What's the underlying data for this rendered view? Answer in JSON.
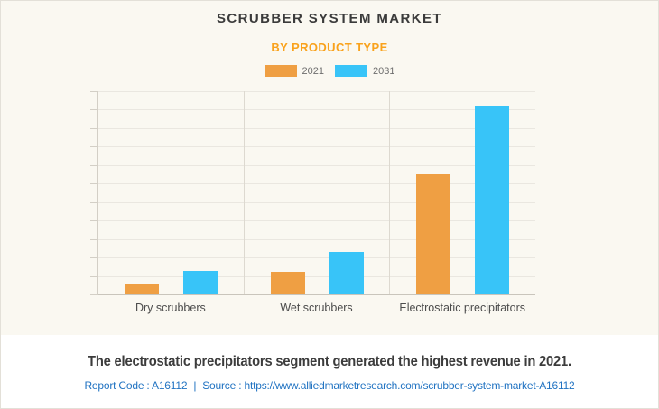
{
  "header": {
    "title": "SCRUBBER SYSTEM MARKET",
    "subtitle": "BY PRODUCT TYPE"
  },
  "colors": {
    "accent_orange": "#f9a21c",
    "bar_2021_orange": "#ef9f43",
    "bar_2031_blue": "#38c4f8",
    "link_blue": "#2173c2",
    "card_background": "#faf8f1"
  },
  "chart_data": {
    "type": "bar",
    "title": "SCRUBBER SYSTEM MARKET",
    "subtitle": "BY PRODUCT TYPE",
    "categories": [
      "Dry scrubbers",
      "Wet scrubbers",
      "Electrostatic precipitators"
    ],
    "series": [
      {
        "name": "2021",
        "color": "#ef9f43",
        "values": [
          0.6,
          1.2,
          6.5
        ]
      },
      {
        "name": "2031",
        "color": "#38c4f8",
        "values": [
          1.25,
          2.3,
          10.2
        ]
      }
    ],
    "xlabel": "",
    "ylabel": "",
    "ylim": [
      0,
      11
    ],
    "grid_intervals": 11,
    "grid": "horizontal gridlines with left-edge ticks; vertical dividers between categories; no numeric y-axis labels",
    "legend_position": "top-center",
    "note": "Y axis is unlabeled; values are estimated in gridline units (1 unit = 1 gridline interval) from bar heights."
  },
  "footer": {
    "statement": "The electrostatic precipitators segment generated the highest revenue in 2021.",
    "report_code_label": "Report Code : A16112",
    "separator": "|",
    "source_label": "Source :",
    "source_url": "https://www.alliedmarketresearch.com/scrubber-system-market-A16112"
  }
}
